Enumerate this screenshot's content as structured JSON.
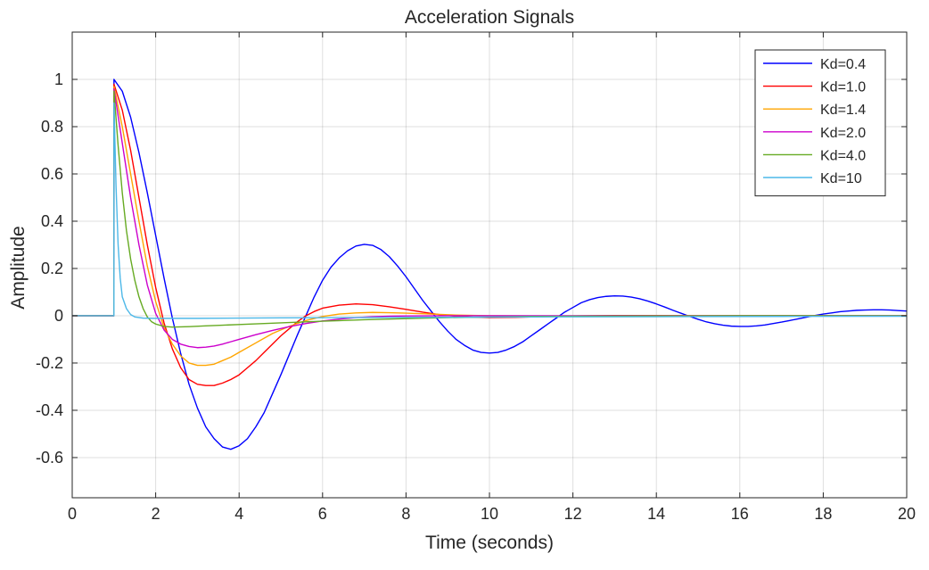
{
  "chart_data": {
    "type": "line",
    "title": "Acceleration Signals",
    "xlabel": "Time (seconds)",
    "ylabel": "Amplitude",
    "xlim": [
      0,
      20
    ],
    "ylim": [
      -0.77,
      1.2
    ],
    "xticks": [
      0,
      2,
      4,
      6,
      8,
      10,
      12,
      14,
      16,
      18,
      20
    ],
    "yticks": [
      -0.6,
      -0.4,
      -0.2,
      0,
      0.2,
      0.4,
      0.6,
      0.8,
      1
    ],
    "ytick_labels": [
      "-0.6",
      "-0.4",
      "-0.2",
      "0",
      "0.2",
      "0.4",
      "0.6",
      "0.8",
      "1"
    ],
    "grid": true,
    "legend_position": "top-right",
    "series": [
      {
        "name": "Kd=0.4",
        "color": "#0000ff",
        "points": [
          [
            0,
            0
          ],
          [
            1,
            0
          ],
          [
            1.001,
            1.0
          ],
          [
            1.2,
            0.95
          ],
          [
            1.4,
            0.84
          ],
          [
            1.6,
            0.69
          ],
          [
            1.8,
            0.52
          ],
          [
            2.0,
            0.34
          ],
          [
            2.2,
            0.16
          ],
          [
            2.4,
            -0.01
          ],
          [
            2.6,
            -0.16
          ],
          [
            2.8,
            -0.29
          ],
          [
            3.0,
            -0.39
          ],
          [
            3.2,
            -0.47
          ],
          [
            3.4,
            -0.52
          ],
          [
            3.6,
            -0.555
          ],
          [
            3.8,
            -0.565
          ],
          [
            4.0,
            -0.55
          ],
          [
            4.2,
            -0.52
          ],
          [
            4.4,
            -0.47
          ],
          [
            4.6,
            -0.41
          ],
          [
            4.8,
            -0.33
          ],
          [
            5.0,
            -0.25
          ],
          [
            5.2,
            -0.165
          ],
          [
            5.4,
            -0.08
          ],
          [
            5.6,
            0.0
          ],
          [
            5.8,
            0.08
          ],
          [
            6.0,
            0.15
          ],
          [
            6.2,
            0.205
          ],
          [
            6.4,
            0.245
          ],
          [
            6.6,
            0.275
          ],
          [
            6.8,
            0.295
          ],
          [
            7.0,
            0.302
          ],
          [
            7.2,
            0.298
          ],
          [
            7.4,
            0.28
          ],
          [
            7.6,
            0.25
          ],
          [
            7.8,
            0.21
          ],
          [
            8.0,
            0.165
          ],
          [
            8.2,
            0.115
          ],
          [
            8.4,
            0.065
          ],
          [
            8.6,
            0.02
          ],
          [
            8.8,
            -0.025
          ],
          [
            9.0,
            -0.065
          ],
          [
            9.2,
            -0.1
          ],
          [
            9.4,
            -0.125
          ],
          [
            9.6,
            -0.145
          ],
          [
            9.8,
            -0.155
          ],
          [
            10.0,
            -0.158
          ],
          [
            10.2,
            -0.155
          ],
          [
            10.4,
            -0.145
          ],
          [
            10.6,
            -0.13
          ],
          [
            10.8,
            -0.11
          ],
          [
            11.0,
            -0.085
          ],
          [
            11.2,
            -0.06
          ],
          [
            11.4,
            -0.035
          ],
          [
            11.6,
            -0.01
          ],
          [
            11.8,
            0.015
          ],
          [
            12.0,
            0.035
          ],
          [
            12.2,
            0.055
          ],
          [
            12.4,
            0.068
          ],
          [
            12.6,
            0.077
          ],
          [
            12.8,
            0.082
          ],
          [
            13.0,
            0.084
          ],
          [
            13.2,
            0.083
          ],
          [
            13.4,
            0.079
          ],
          [
            13.6,
            0.072
          ],
          [
            13.8,
            0.062
          ],
          [
            14.0,
            0.05
          ],
          [
            14.2,
            0.037
          ],
          [
            14.4,
            0.023
          ],
          [
            14.6,
            0.01
          ],
          [
            14.8,
            -0.003
          ],
          [
            15.0,
            -0.015
          ],
          [
            15.2,
            -0.026
          ],
          [
            15.4,
            -0.034
          ],
          [
            15.6,
            -0.04
          ],
          [
            15.8,
            -0.044
          ],
          [
            16.0,
            -0.045
          ],
          [
            16.2,
            -0.045
          ],
          [
            16.4,
            -0.043
          ],
          [
            16.6,
            -0.039
          ],
          [
            16.8,
            -0.033
          ],
          [
            17.0,
            -0.027
          ],
          [
            17.2,
            -0.02
          ],
          [
            17.4,
            -0.013
          ],
          [
            17.6,
            -0.006
          ],
          [
            17.8,
            0.001
          ],
          [
            18.0,
            0.007
          ],
          [
            18.2,
            0.012
          ],
          [
            18.4,
            0.017
          ],
          [
            18.6,
            0.02
          ],
          [
            18.8,
            0.023
          ],
          [
            19.0,
            0.024
          ],
          [
            19.2,
            0.025
          ],
          [
            19.4,
            0.025
          ],
          [
            19.6,
            0.024
          ],
          [
            19.8,
            0.022
          ],
          [
            20.0,
            0.02
          ]
        ]
      },
      {
        "name": "Kd=1.0",
        "color": "#ff0000",
        "points": [
          [
            0,
            0
          ],
          [
            1,
            0
          ],
          [
            1.001,
            0.98
          ],
          [
            1.2,
            0.87
          ],
          [
            1.4,
            0.7
          ],
          [
            1.6,
            0.5
          ],
          [
            1.8,
            0.3
          ],
          [
            2.0,
            0.12
          ],
          [
            2.2,
            -0.03
          ],
          [
            2.4,
            -0.14
          ],
          [
            2.6,
            -0.22
          ],
          [
            2.8,
            -0.27
          ],
          [
            3.0,
            -0.29
          ],
          [
            3.2,
            -0.295
          ],
          [
            3.4,
            -0.295
          ],
          [
            3.6,
            -0.285
          ],
          [
            3.8,
            -0.27
          ],
          [
            4.0,
            -0.25
          ],
          [
            4.2,
            -0.22
          ],
          [
            4.4,
            -0.19
          ],
          [
            4.6,
            -0.155
          ],
          [
            4.8,
            -0.12
          ],
          [
            5.0,
            -0.085
          ],
          [
            5.2,
            -0.055
          ],
          [
            5.4,
            -0.025
          ],
          [
            5.6,
            0.0
          ],
          [
            5.8,
            0.018
          ],
          [
            6.0,
            0.032
          ],
          [
            6.4,
            0.045
          ],
          [
            6.8,
            0.05
          ],
          [
            7.2,
            0.047
          ],
          [
            7.6,
            0.038
          ],
          [
            8.0,
            0.027
          ],
          [
            8.4,
            0.015
          ],
          [
            8.8,
            0.005
          ],
          [
            9.2,
            -0.002
          ],
          [
            9.6,
            -0.006
          ],
          [
            10.0,
            -0.008
          ],
          [
            10.6,
            -0.007
          ],
          [
            11.2,
            -0.004
          ],
          [
            12.0,
            -0.001
          ],
          [
            13.0,
            0.001
          ],
          [
            14.0,
            0.001
          ],
          [
            15.0,
            0.0
          ],
          [
            20.0,
            0.0
          ]
        ]
      },
      {
        "name": "Kd=1.4",
        "color": "#ffa500",
        "points": [
          [
            0,
            0
          ],
          [
            1,
            0
          ],
          [
            1.001,
            0.97
          ],
          [
            1.2,
            0.8
          ],
          [
            1.4,
            0.6
          ],
          [
            1.6,
            0.4
          ],
          [
            1.8,
            0.21
          ],
          [
            2.0,
            0.06
          ],
          [
            2.2,
            -0.05
          ],
          [
            2.4,
            -0.12
          ],
          [
            2.6,
            -0.17
          ],
          [
            2.8,
            -0.2
          ],
          [
            3.0,
            -0.21
          ],
          [
            3.2,
            -0.21
          ],
          [
            3.4,
            -0.205
          ],
          [
            3.6,
            -0.19
          ],
          [
            3.8,
            -0.175
          ],
          [
            4.0,
            -0.155
          ],
          [
            4.4,
            -0.115
          ],
          [
            4.8,
            -0.075
          ],
          [
            5.2,
            -0.045
          ],
          [
            5.6,
            -0.02
          ],
          [
            6.0,
            -0.003
          ],
          [
            6.4,
            0.007
          ],
          [
            6.8,
            0.012
          ],
          [
            7.2,
            0.014
          ],
          [
            7.6,
            0.013
          ],
          [
            8.0,
            0.011
          ],
          [
            8.6,
            0.007
          ],
          [
            9.2,
            0.003
          ],
          [
            10.0,
            0.0
          ],
          [
            11.0,
            -0.001
          ],
          [
            12.0,
            -0.001
          ],
          [
            14.0,
            0.0
          ],
          [
            20.0,
            0.0
          ]
        ]
      },
      {
        "name": "Kd=2.0",
        "color": "#cc00cc",
        "points": [
          [
            0,
            0
          ],
          [
            1,
            0
          ],
          [
            1.001,
            0.96
          ],
          [
            1.2,
            0.73
          ],
          [
            1.4,
            0.5
          ],
          [
            1.6,
            0.3
          ],
          [
            1.8,
            0.13
          ],
          [
            2.0,
            0.01
          ],
          [
            2.2,
            -0.06
          ],
          [
            2.4,
            -0.1
          ],
          [
            2.6,
            -0.12
          ],
          [
            2.8,
            -0.13
          ],
          [
            3.0,
            -0.135
          ],
          [
            3.2,
            -0.133
          ],
          [
            3.4,
            -0.128
          ],
          [
            3.6,
            -0.12
          ],
          [
            3.8,
            -0.11
          ],
          [
            4.0,
            -0.1
          ],
          [
            4.4,
            -0.08
          ],
          [
            4.8,
            -0.062
          ],
          [
            5.2,
            -0.046
          ],
          [
            5.6,
            -0.033
          ],
          [
            6.0,
            -0.022
          ],
          [
            6.4,
            -0.014
          ],
          [
            6.8,
            -0.008
          ],
          [
            7.2,
            -0.004
          ],
          [
            7.6,
            -0.002
          ],
          [
            8.0,
            -0.001
          ],
          [
            9.0,
            0.0
          ],
          [
            20.0,
            0.0
          ]
        ]
      },
      {
        "name": "Kd=4.0",
        "color": "#66aa22",
        "points": [
          [
            0,
            0
          ],
          [
            1,
            0
          ],
          [
            1.001,
            0.95
          ],
          [
            1.1,
            0.72
          ],
          [
            1.2,
            0.52
          ],
          [
            1.3,
            0.36
          ],
          [
            1.4,
            0.24
          ],
          [
            1.5,
            0.15
          ],
          [
            1.6,
            0.08
          ],
          [
            1.7,
            0.03
          ],
          [
            1.8,
            -0.005
          ],
          [
            1.9,
            -0.025
          ],
          [
            2.0,
            -0.035
          ],
          [
            2.2,
            -0.045
          ],
          [
            2.4,
            -0.048
          ],
          [
            2.8,
            -0.046
          ],
          [
            3.2,
            -0.043
          ],
          [
            3.6,
            -0.04
          ],
          [
            4.0,
            -0.037
          ],
          [
            5.0,
            -0.03
          ],
          [
            6.0,
            -0.023
          ],
          [
            7.0,
            -0.017
          ],
          [
            8.0,
            -0.012
          ],
          [
            9.0,
            -0.008
          ],
          [
            10.0,
            -0.005
          ],
          [
            11.0,
            -0.003
          ],
          [
            12.0,
            -0.002
          ],
          [
            14.0,
            -0.001
          ],
          [
            16.0,
            0.0
          ],
          [
            20.0,
            0.0
          ]
        ]
      },
      {
        "name": "Kd=10",
        "color": "#4db8e8",
        "points": [
          [
            0,
            0
          ],
          [
            1,
            0
          ],
          [
            1.001,
            0.9
          ],
          [
            1.05,
            0.55
          ],
          [
            1.1,
            0.3
          ],
          [
            1.15,
            0.16
          ],
          [
            1.2,
            0.08
          ],
          [
            1.3,
            0.03
          ],
          [
            1.4,
            0.005
          ],
          [
            1.5,
            -0.005
          ],
          [
            1.7,
            -0.01
          ],
          [
            2.0,
            -0.011
          ],
          [
            3.0,
            -0.011
          ],
          [
            5.0,
            -0.009
          ],
          [
            8.0,
            -0.007
          ],
          [
            11.0,
            -0.005
          ],
          [
            14.0,
            -0.004
          ],
          [
            17.0,
            -0.003
          ],
          [
            20.0,
            -0.002
          ]
        ]
      }
    ]
  }
}
